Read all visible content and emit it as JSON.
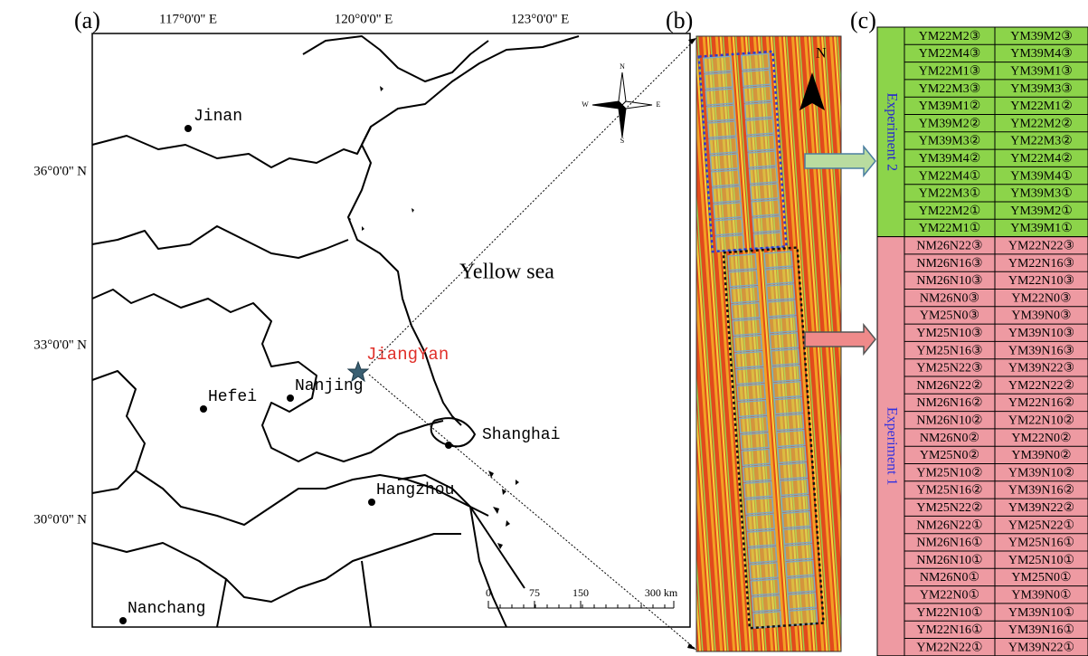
{
  "panels": {
    "a": "(a)",
    "b": "(b)",
    "c": "(c)"
  },
  "map": {
    "lon_labels": [
      "117°0'0'' E",
      "120°0'0'' E",
      "123°0'0'' E"
    ],
    "lat_labels": [
      "36°0'0'' N",
      "33°0'0'' N",
      "30°0'0'' N"
    ],
    "cities": [
      "Jinan",
      "Hefei",
      "Nanjing",
      "Shanghai",
      "Hangzhou",
      "Nanchang"
    ],
    "site": "JiangYan",
    "sea": "Yellow sea",
    "scale": [
      "0",
      "75",
      "150",
      "300 km"
    ],
    "compass": [
      "N",
      "S",
      "W",
      "E"
    ]
  },
  "image": {
    "north": "N"
  },
  "table": {
    "groups": [
      {
        "label": "Experiment 2",
        "rows": [
          [
            "YM22M2③",
            "YM39M2③"
          ],
          [
            "YM22M4③",
            "YM39M4③"
          ],
          [
            "YM22M1③",
            "YM39M1③"
          ],
          [
            "YM22M3③",
            "YM39M3③"
          ],
          [
            "YM39M1②",
            "YM22M1②"
          ],
          [
            "YM39M2②",
            "YM22M2②"
          ],
          [
            "YM39M3②",
            "YM22M3②"
          ],
          [
            "YM39M4②",
            "YM22M4②"
          ],
          [
            "YM22M4①",
            "YM39M4①"
          ],
          [
            "YM22M3①",
            "YM39M3①"
          ],
          [
            "YM22M2①",
            "YM39M2①"
          ],
          [
            "YM22M1①",
            "YM39M1①"
          ]
        ]
      },
      {
        "label": "Experiment 1",
        "rows": [
          [
            "NM26N22③",
            "YM22N22③"
          ],
          [
            "NM26N16③",
            "YM22N16③"
          ],
          [
            "NM26N10③",
            "YM22N10③"
          ],
          [
            "NM26N0③",
            "YM22N0③"
          ],
          [
            "YM25N0③",
            "YM39N0③"
          ],
          [
            "YM25N10③",
            "YM39N10③"
          ],
          [
            "YM25N16③",
            "YM39N16③"
          ],
          [
            "YM25N22③",
            "YM39N22③"
          ],
          [
            "NM26N22②",
            "YM22N22②"
          ],
          [
            "NM26N16②",
            "YM22N16②"
          ],
          [
            "NM26N10②",
            "YM22N10②"
          ],
          [
            "NM26N0②",
            "YM22N0②"
          ],
          [
            "YM25N0②",
            "YM39N0②"
          ],
          [
            "YM25N10②",
            "YM39N10②"
          ],
          [
            "YM25N16②",
            "YM39N16②"
          ],
          [
            "YM25N22②",
            "YM39N22②"
          ],
          [
            "NM26N22①",
            "YM25N22①"
          ],
          [
            "NM26N16①",
            "YM25N16①"
          ],
          [
            "NM26N10①",
            "YM25N10①"
          ],
          [
            "NM26N0①",
            "YM25N0①"
          ],
          [
            "YM22N0①",
            "YM39N0①"
          ],
          [
            "YM22N10①",
            "YM39N10①"
          ],
          [
            "YM22N16①",
            "YM39N16①"
          ],
          [
            "YM22N22①",
            "YM39N22①"
          ]
        ]
      }
    ]
  }
}
